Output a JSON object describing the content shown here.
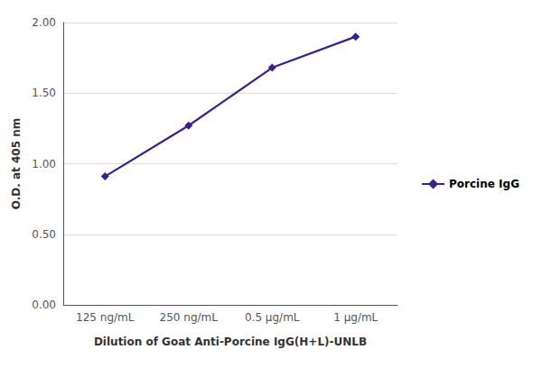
{
  "chart_data": {
    "type": "line",
    "categories": [
      "125 ng/mL",
      "250 ng/mL",
      "0.5 μg/mL",
      "1 μg/mL"
    ],
    "series": [
      {
        "name": "Porcine IgG",
        "color": "#3b1f8c",
        "marker": "diamond",
        "values": [
          0.91,
          1.27,
          1.68,
          1.9
        ]
      }
    ],
    "xlabel": "Dilution of Goat Anti-Porcine IgG(H+L)-UNLB",
    "ylabel": "O.D. at 405 nm",
    "ylim": [
      0.0,
      2.0
    ],
    "yticks": [
      {
        "value": 0.0,
        "label": "0.00"
      },
      {
        "value": 0.5,
        "label": "0.50"
      },
      {
        "value": 1.0,
        "label": "1.00"
      },
      {
        "value": 1.5,
        "label": "1.50"
      },
      {
        "value": 2.0,
        "label": "2.00"
      }
    ],
    "grid": true,
    "legend": "right"
  }
}
